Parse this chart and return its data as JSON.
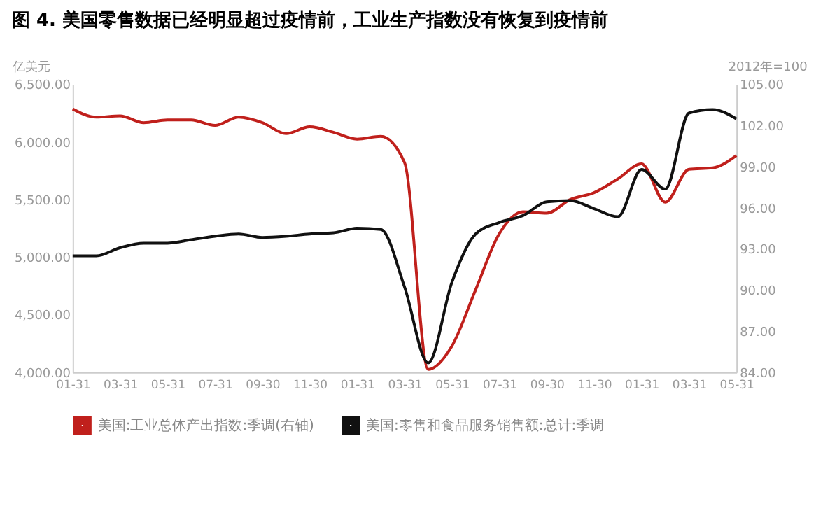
{
  "chart_data": {
    "type": "line",
    "title": "图 4. 美国零售数据已经明显超过疫情前，工业生产指数没有恢复到疫情前",
    "ylabel": "亿美元",
    "y2label": "2012年=100",
    "categories": [
      "01-31",
      null,
      "03-31",
      null,
      "05-31",
      null,
      "07-31",
      null,
      "09-30",
      null,
      "11-30",
      null,
      "01-31",
      null,
      "03-31",
      null,
      "05-31",
      null,
      "07-31",
      null,
      "09-30",
      null,
      "11-30",
      null,
      "01-31",
      null,
      "03-31",
      null,
      "05-31"
    ],
    "series": [
      {
        "name": "美国:工业总体产出指数:季调(右轴)",
        "color": "#c0201c",
        "axis": "y2",
        "values": [
          103.2,
          102.6,
          102.7,
          102.2,
          102.4,
          102.4,
          102.0,
          102.6,
          102.2,
          101.4,
          101.9,
          101.5,
          101.0,
          101.2,
          99.3,
          84.2,
          85.9,
          90.0,
          94.1,
          95.7,
          95.6,
          96.6,
          97.1,
          98.1,
          99.2,
          96.4,
          98.8,
          98.9,
          99.8
        ]
      },
      {
        "name": "美国:零售和食品服务销售额:总计:季调",
        "color": "#111111",
        "values": [
          5010,
          5010,
          5080,
          5120,
          5120,
          5150,
          5180,
          5200,
          5170,
          5180,
          5200,
          5210,
          5250,
          5240,
          4740,
          4080,
          4780,
          5200,
          5300,
          5360,
          5480,
          5490,
          5420,
          5350,
          5760,
          5590,
          6250,
          6280,
          6200
        ]
      }
    ],
    "ylim": [
      4000,
      6500
    ],
    "yticks": [
      {
        "value": 4000,
        "label": "4,000.00"
      },
      {
        "value": 4500,
        "label": "4,500.00"
      },
      {
        "value": 5000,
        "label": "5,000.00"
      },
      {
        "value": 5500,
        "label": "5,500.00"
      },
      {
        "value": 6000,
        "label": "6,000.00"
      },
      {
        "value": 6500,
        "label": "6,500.00"
      }
    ],
    "y2lim": [
      84,
      105
    ],
    "y2ticks": [
      {
        "value": 84,
        "label": "84.00"
      },
      {
        "value": 87,
        "label": "87.00"
      },
      {
        "value": 90,
        "label": "90.00"
      },
      {
        "value": 93,
        "label": "93.00"
      },
      {
        "value": 96,
        "label": "96.00"
      },
      {
        "value": 99,
        "label": "99.00"
      },
      {
        "value": 102,
        "label": "102.00"
      },
      {
        "value": 105,
        "label": "105.00"
      }
    ],
    "grid": false,
    "legend": "bottom",
    "marker": "none",
    "line_style": "solid"
  }
}
